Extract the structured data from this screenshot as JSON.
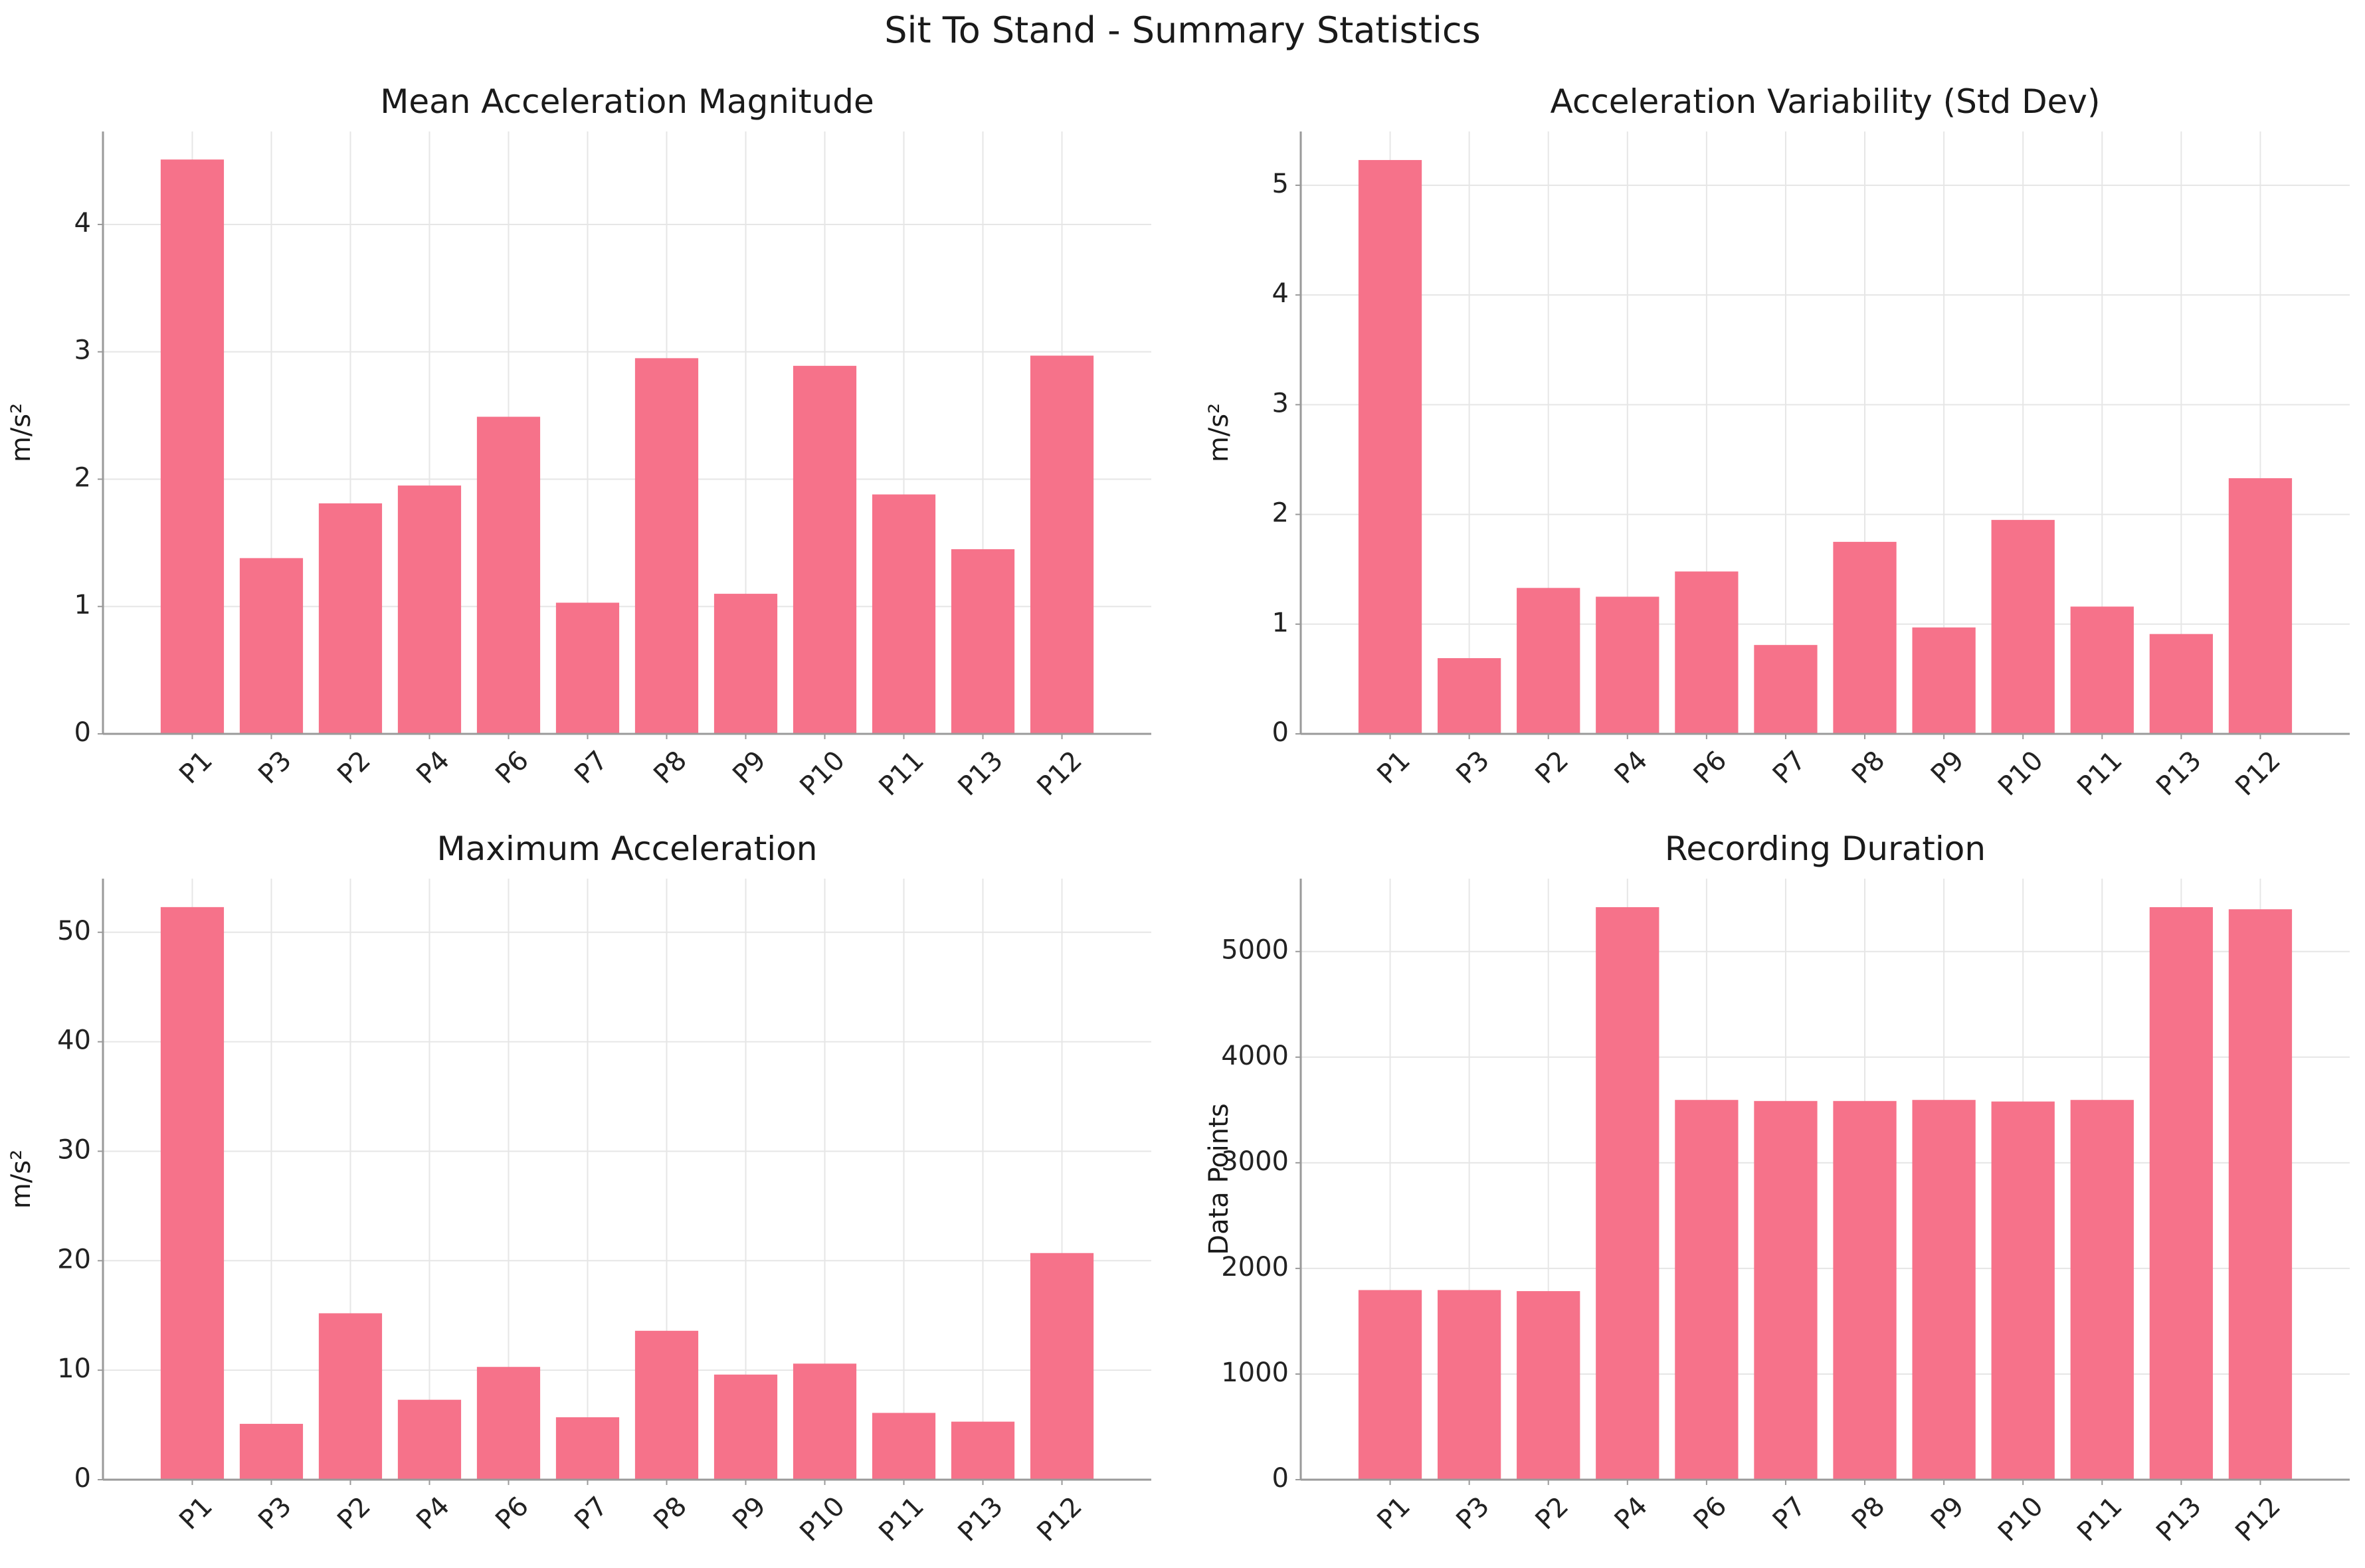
{
  "title": "Sit To Stand - Summary Statistics",
  "chart_data": [
    {
      "type": "bar",
      "title": "Mean Acceleration Magnitude",
      "xlabel": "",
      "ylabel": "m/s²",
      "categories": [
        "P1",
        "P3",
        "P2",
        "P4",
        "P6",
        "P7",
        "P8",
        "P9",
        "P10",
        "P11",
        "P13",
        "P12"
      ],
      "values": [
        4.51,
        1.38,
        1.81,
        1.95,
        2.49,
        1.03,
        2.95,
        1.1,
        2.89,
        1.88,
        1.45,
        2.97
      ],
      "ylim": [
        0,
        4.73
      ],
      "yticks": [
        0,
        1,
        2,
        3,
        4
      ],
      "color": "#f6728a",
      "grid": true
    },
    {
      "type": "bar",
      "title": "Acceleration Variability (Std Dev)",
      "xlabel": "",
      "ylabel": "m/s²",
      "categories": [
        "P1",
        "P3",
        "P2",
        "P4",
        "P6",
        "P7",
        "P8",
        "P9",
        "P10",
        "P11",
        "P13",
        "P12"
      ],
      "values": [
        5.23,
        0.69,
        1.33,
        1.25,
        1.48,
        0.81,
        1.75,
        0.97,
        1.95,
        1.16,
        0.91,
        2.33
      ],
      "ylim": [
        0,
        5.49
      ],
      "yticks": [
        0,
        1,
        2,
        3,
        4,
        5
      ],
      "color": "#f6728a",
      "grid": true
    },
    {
      "type": "bar",
      "title": "Maximum Acceleration",
      "xlabel": "",
      "ylabel": "m/s²",
      "categories": [
        "P1",
        "P3",
        "P2",
        "P4",
        "P6",
        "P7",
        "P8",
        "P9",
        "P10",
        "P11",
        "P13",
        "P12"
      ],
      "values": [
        52.3,
        5.1,
        15.2,
        7.3,
        10.3,
        5.7,
        13.6,
        9.6,
        10.6,
        6.1,
        5.3,
        20.7
      ],
      "ylim": [
        0,
        54.9
      ],
      "yticks": [
        0,
        10,
        20,
        30,
        40,
        50
      ],
      "color": "#f6728a",
      "grid": true
    },
    {
      "type": "bar",
      "title": "Recording Duration",
      "xlabel": "",
      "ylabel": "Data Points",
      "categories": [
        "P1",
        "P3",
        "P2",
        "P4",
        "P6",
        "P7",
        "P8",
        "P9",
        "P10",
        "P11",
        "P13",
        "P12"
      ],
      "values": [
        1795,
        1795,
        1785,
        5420,
        3595,
        3585,
        3585,
        3595,
        3580,
        3595,
        5420,
        5400
      ],
      "ylim": [
        0,
        5690
      ],
      "yticks": [
        0,
        1000,
        2000,
        3000,
        4000,
        5000
      ],
      "color": "#f6728a",
      "grid": true
    }
  ]
}
